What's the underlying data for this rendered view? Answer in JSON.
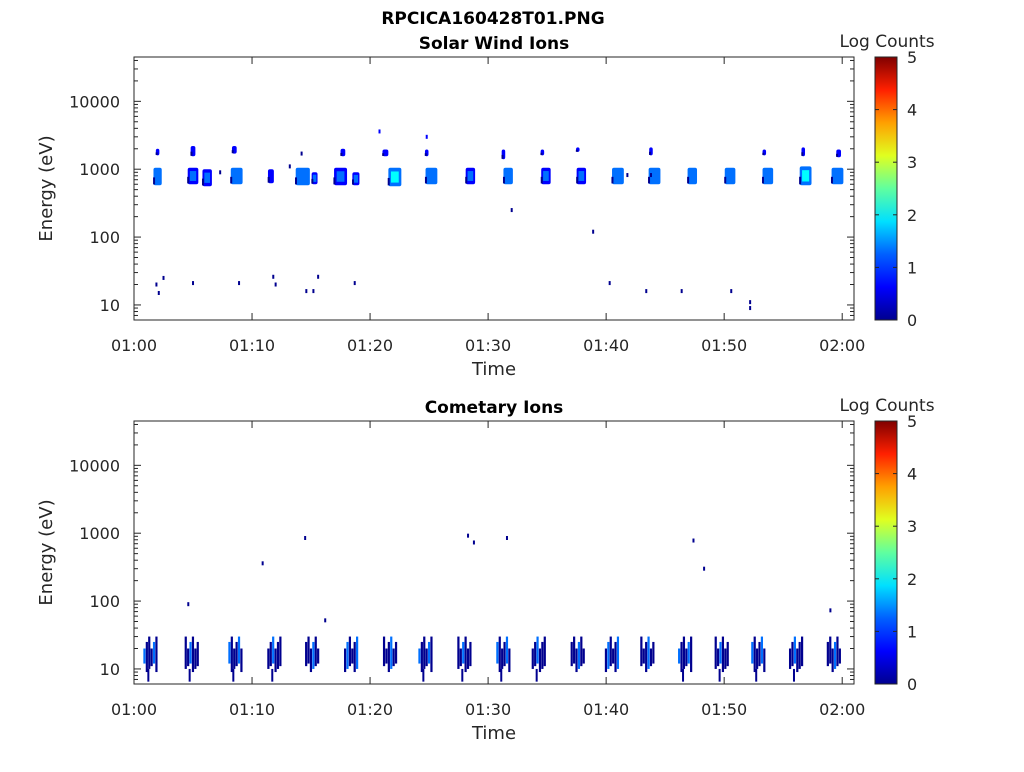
{
  "figure": {
    "title": "RPCICA160428T01.PNG"
  },
  "colormap": [
    "#00008f",
    "#0000ff",
    "#0070ff",
    "#00ffff",
    "#70ff90",
    "#ffff00",
    "#ff9000",
    "#ff0000",
    "#800000"
  ],
  "chart_data": [
    {
      "type": "heatmap",
      "title": "Solar Wind Ions",
      "xlabel": "Time",
      "ylabel": "Energy (eV)",
      "x_tick_labels": [
        "01:00",
        "01:10",
        "01:20",
        "01:30",
        "01:40",
        "01:50",
        "02:00"
      ],
      "y_tick_labels": [
        "10",
        "100",
        "1000",
        "10000"
      ],
      "y_scale": "log",
      "ylim": [
        6,
        45000
      ],
      "xlim_minutes": [
        0,
        61
      ],
      "colorbar": {
        "label": "Log Counts",
        "ticks": [
          "0",
          "1",
          "2",
          "3",
          "4",
          "5"
        ],
        "range": [
          0,
          5
        ]
      },
      "blobs": [
        {
          "t": 2.0,
          "e_lo": 580,
          "e_hi": 1050,
          "w": 0.7,
          "c": 1.4
        },
        {
          "t": 2.0,
          "e_lo": 1600,
          "e_hi": 2000,
          "w": 0.3,
          "c": 0.6
        },
        {
          "t": 5.0,
          "e_lo": 600,
          "e_hi": 1050,
          "w": 0.9,
          "c": 1.3
        },
        {
          "t": 5.0,
          "e_lo": 1550,
          "e_hi": 2200,
          "w": 0.4,
          "c": 0.7
        },
        {
          "t": 6.2,
          "e_lo": 560,
          "e_hi": 1000,
          "w": 0.8,
          "c": 1.0
        },
        {
          "t": 8.7,
          "e_lo": 600,
          "e_hi": 1050,
          "w": 1.0,
          "c": 1.5
        },
        {
          "t": 8.5,
          "e_lo": 1700,
          "e_hi": 2200,
          "w": 0.4,
          "c": 0.7
        },
        {
          "t": 11.6,
          "e_lo": 620,
          "e_hi": 1000,
          "w": 0.5,
          "c": 0.9
        },
        {
          "t": 14.3,
          "e_lo": 580,
          "e_hi": 1050,
          "w": 1.2,
          "c": 1.5
        },
        {
          "t": 15.3,
          "e_lo": 600,
          "e_hi": 900,
          "w": 0.5,
          "c": 1.0
        },
        {
          "t": 17.5,
          "e_lo": 580,
          "e_hi": 1050,
          "w": 1.1,
          "c": 1.3
        },
        {
          "t": 18.8,
          "e_lo": 580,
          "e_hi": 900,
          "w": 0.6,
          "c": 1.2
        },
        {
          "t": 17.7,
          "e_lo": 1550,
          "e_hi": 2000,
          "w": 0.4,
          "c": 0.7
        },
        {
          "t": 21.3,
          "e_lo": 1550,
          "e_hi": 1950,
          "w": 0.5,
          "c": 0.8
        },
        {
          "t": 22.1,
          "e_lo": 560,
          "e_hi": 1050,
          "w": 1.1,
          "c": 1.6
        },
        {
          "t": 24.8,
          "e_lo": 1550,
          "e_hi": 1950,
          "w": 0.3,
          "c": 0.6
        },
        {
          "t": 25.2,
          "e_lo": 600,
          "e_hi": 1050,
          "w": 1.0,
          "c": 1.5
        },
        {
          "t": 28.5,
          "e_lo": 600,
          "e_hi": 1050,
          "w": 0.8,
          "c": 1.3
        },
        {
          "t": 31.7,
          "e_lo": 600,
          "e_hi": 1050,
          "w": 0.8,
          "c": 1.4
        },
        {
          "t": 31.3,
          "e_lo": 1400,
          "e_hi": 1950,
          "w": 0.3,
          "c": 0.5
        },
        {
          "t": 34.9,
          "e_lo": 600,
          "e_hi": 1050,
          "w": 0.8,
          "c": 1.3
        },
        {
          "t": 34.6,
          "e_lo": 1600,
          "e_hi": 1950,
          "w": 0.3,
          "c": 0.5
        },
        {
          "t": 37.9,
          "e_lo": 600,
          "e_hi": 1050,
          "w": 0.8,
          "c": 1.3
        },
        {
          "t": 37.6,
          "e_lo": 1800,
          "e_hi": 2100,
          "w": 0.3,
          "c": 0.6
        },
        {
          "t": 41.0,
          "e_lo": 600,
          "e_hi": 1050,
          "w": 1.0,
          "c": 1.4
        },
        {
          "t": 44.1,
          "e_lo": 600,
          "e_hi": 1050,
          "w": 1.0,
          "c": 1.4
        },
        {
          "t": 43.8,
          "e_lo": 1600,
          "e_hi": 2100,
          "w": 0.3,
          "c": 0.6
        },
        {
          "t": 47.3,
          "e_lo": 600,
          "e_hi": 1050,
          "w": 0.8,
          "c": 1.4
        },
        {
          "t": 50.5,
          "e_lo": 600,
          "e_hi": 1050,
          "w": 0.9,
          "c": 1.5
        },
        {
          "t": 53.7,
          "e_lo": 600,
          "e_hi": 1050,
          "w": 0.9,
          "c": 1.5
        },
        {
          "t": 53.4,
          "e_lo": 1600,
          "e_hi": 1950,
          "w": 0.3,
          "c": 0.6
        },
        {
          "t": 56.9,
          "e_lo": 580,
          "e_hi": 1100,
          "w": 1.0,
          "c": 1.6
        },
        {
          "t": 56.7,
          "e_lo": 1550,
          "e_hi": 2100,
          "w": 0.3,
          "c": 0.6
        },
        {
          "t": 59.6,
          "e_lo": 600,
          "e_hi": 1050,
          "w": 1.0,
          "c": 1.4
        },
        {
          "t": 59.7,
          "e_lo": 1500,
          "e_hi": 1950,
          "w": 0.4,
          "c": 0.7
        }
      ],
      "dots": [
        {
          "t": 1.9,
          "e": 20,
          "c": 0.2
        },
        {
          "t": 2.1,
          "e": 15,
          "c": 0.2
        },
        {
          "t": 2.5,
          "e": 25,
          "c": 0.2
        },
        {
          "t": 5.0,
          "e": 21,
          "c": 0.2
        },
        {
          "t": 7.3,
          "e": 900,
          "c": 0.2
        },
        {
          "t": 8.9,
          "e": 21,
          "c": 0.2
        },
        {
          "t": 11.8,
          "e": 26,
          "c": 0.2
        },
        {
          "t": 12.0,
          "e": 20,
          "c": 0.2
        },
        {
          "t": 13.2,
          "e": 1100,
          "c": 0.3
        },
        {
          "t": 14.6,
          "e": 16,
          "c": 0.2
        },
        {
          "t": 15.2,
          "e": 16,
          "c": 0.2
        },
        {
          "t": 15.6,
          "e": 26,
          "c": 0.2
        },
        {
          "t": 14.2,
          "e": 1700,
          "c": 0.3
        },
        {
          "t": 18.7,
          "e": 21,
          "c": 0.2
        },
        {
          "t": 20.8,
          "e": 3600,
          "c": 0.4
        },
        {
          "t": 24.8,
          "e": 3000,
          "c": 0.4
        },
        {
          "t": 32.0,
          "e": 250,
          "c": 0.3
        },
        {
          "t": 38.9,
          "e": 120,
          "c": 0.3
        },
        {
          "t": 40.3,
          "e": 21,
          "c": 0.2
        },
        {
          "t": 43.4,
          "e": 16,
          "c": 0.2
        },
        {
          "t": 46.4,
          "e": 16,
          "c": 0.2
        },
        {
          "t": 50.6,
          "e": 16,
          "c": 0.2
        },
        {
          "t": 52.2,
          "e": 9,
          "c": 0.2
        },
        {
          "t": 52.2,
          "e": 11,
          "c": 0.2
        },
        {
          "t": 43.8,
          "e": 820,
          "c": 0.3
        },
        {
          "t": 41.8,
          "e": 820,
          "c": 0.3
        }
      ]
    },
    {
      "type": "heatmap",
      "title": "Cometary Ions",
      "xlabel": "Time",
      "ylabel": "Energy (eV)",
      "x_tick_labels": [
        "01:00",
        "01:10",
        "01:20",
        "01:30",
        "01:40",
        "01:50",
        "02:00"
      ],
      "y_tick_labels": [
        "10",
        "100",
        "1000",
        "10000"
      ],
      "y_scale": "log",
      "ylim": [
        6,
        45000
      ],
      "xlim_minutes": [
        0,
        61
      ],
      "colorbar": {
        "label": "Log Counts",
        "ticks": [
          "0",
          "1",
          "2",
          "3",
          "4",
          "5"
        ],
        "range": [
          0,
          5
        ]
      },
      "bursts": [
        1.3,
        4.8,
        8.5,
        11.8,
        15.0,
        18.3,
        21.6,
        24.6,
        27.9,
        31.2,
        34.2,
        37.5,
        40.4,
        43.4,
        46.6,
        49.7,
        52.8,
        56.0,
        59.2
      ],
      "dots": [
        {
          "t": 4.6,
          "e": 90,
          "c": 0.3
        },
        {
          "t": 10.9,
          "e": 360,
          "c": 0.3
        },
        {
          "t": 14.5,
          "e": 850,
          "c": 0.3
        },
        {
          "t": 16.2,
          "e": 52,
          "c": 0.3
        },
        {
          "t": 28.3,
          "e": 920,
          "c": 0.3
        },
        {
          "t": 28.8,
          "e": 730,
          "c": 0.3
        },
        {
          "t": 31.6,
          "e": 850,
          "c": 0.3
        },
        {
          "t": 47.4,
          "e": 780,
          "c": 0.3
        },
        {
          "t": 48.3,
          "e": 300,
          "c": 0.3
        },
        {
          "t": 59.0,
          "e": 73,
          "c": 0.3
        }
      ]
    }
  ]
}
